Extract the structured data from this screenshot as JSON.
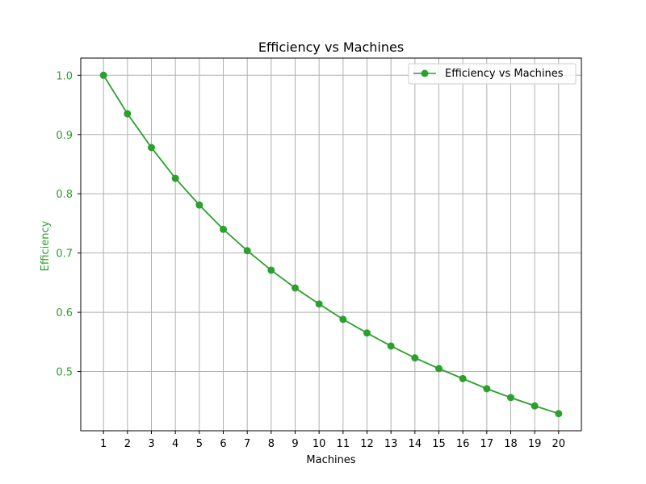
{
  "chart_data": {
    "type": "line",
    "title": "Efficiency vs Machines",
    "xlabel": "Machines",
    "ylabel": "Efficiency",
    "x": [
      1,
      2,
      3,
      4,
      5,
      6,
      7,
      8,
      9,
      10,
      11,
      12,
      13,
      14,
      15,
      16,
      17,
      18,
      19,
      20
    ],
    "xticks": [
      "1",
      "2",
      "3",
      "4",
      "5",
      "6",
      "7",
      "8",
      "9",
      "10",
      "11",
      "12",
      "13",
      "14",
      "15",
      "16",
      "17",
      "18",
      "19",
      "20"
    ],
    "xlim": [
      0.05,
      20.95
    ],
    "ylim": [
      0.4,
      1.029
    ],
    "yticks": [
      "0.5",
      "0.6",
      "0.7",
      "0.8",
      "0.9",
      "1.0"
    ],
    "ytick_values": [
      0.5,
      0.6,
      0.7,
      0.8,
      0.9,
      1.0
    ],
    "series": [
      {
        "name": "Efficiency vs Machines",
        "color": "#2ca02c",
        "marker": "circle",
        "values": [
          1.0,
          0.935,
          0.878,
          0.826,
          0.781,
          0.74,
          0.704,
          0.671,
          0.641,
          0.614,
          0.588,
          0.565,
          0.543,
          0.523,
          0.505,
          0.488,
          0.471,
          0.456,
          0.442,
          0.429
        ]
      }
    ],
    "grid": true,
    "legend": "upper-right",
    "axis_label_color": "#2ca02c"
  }
}
